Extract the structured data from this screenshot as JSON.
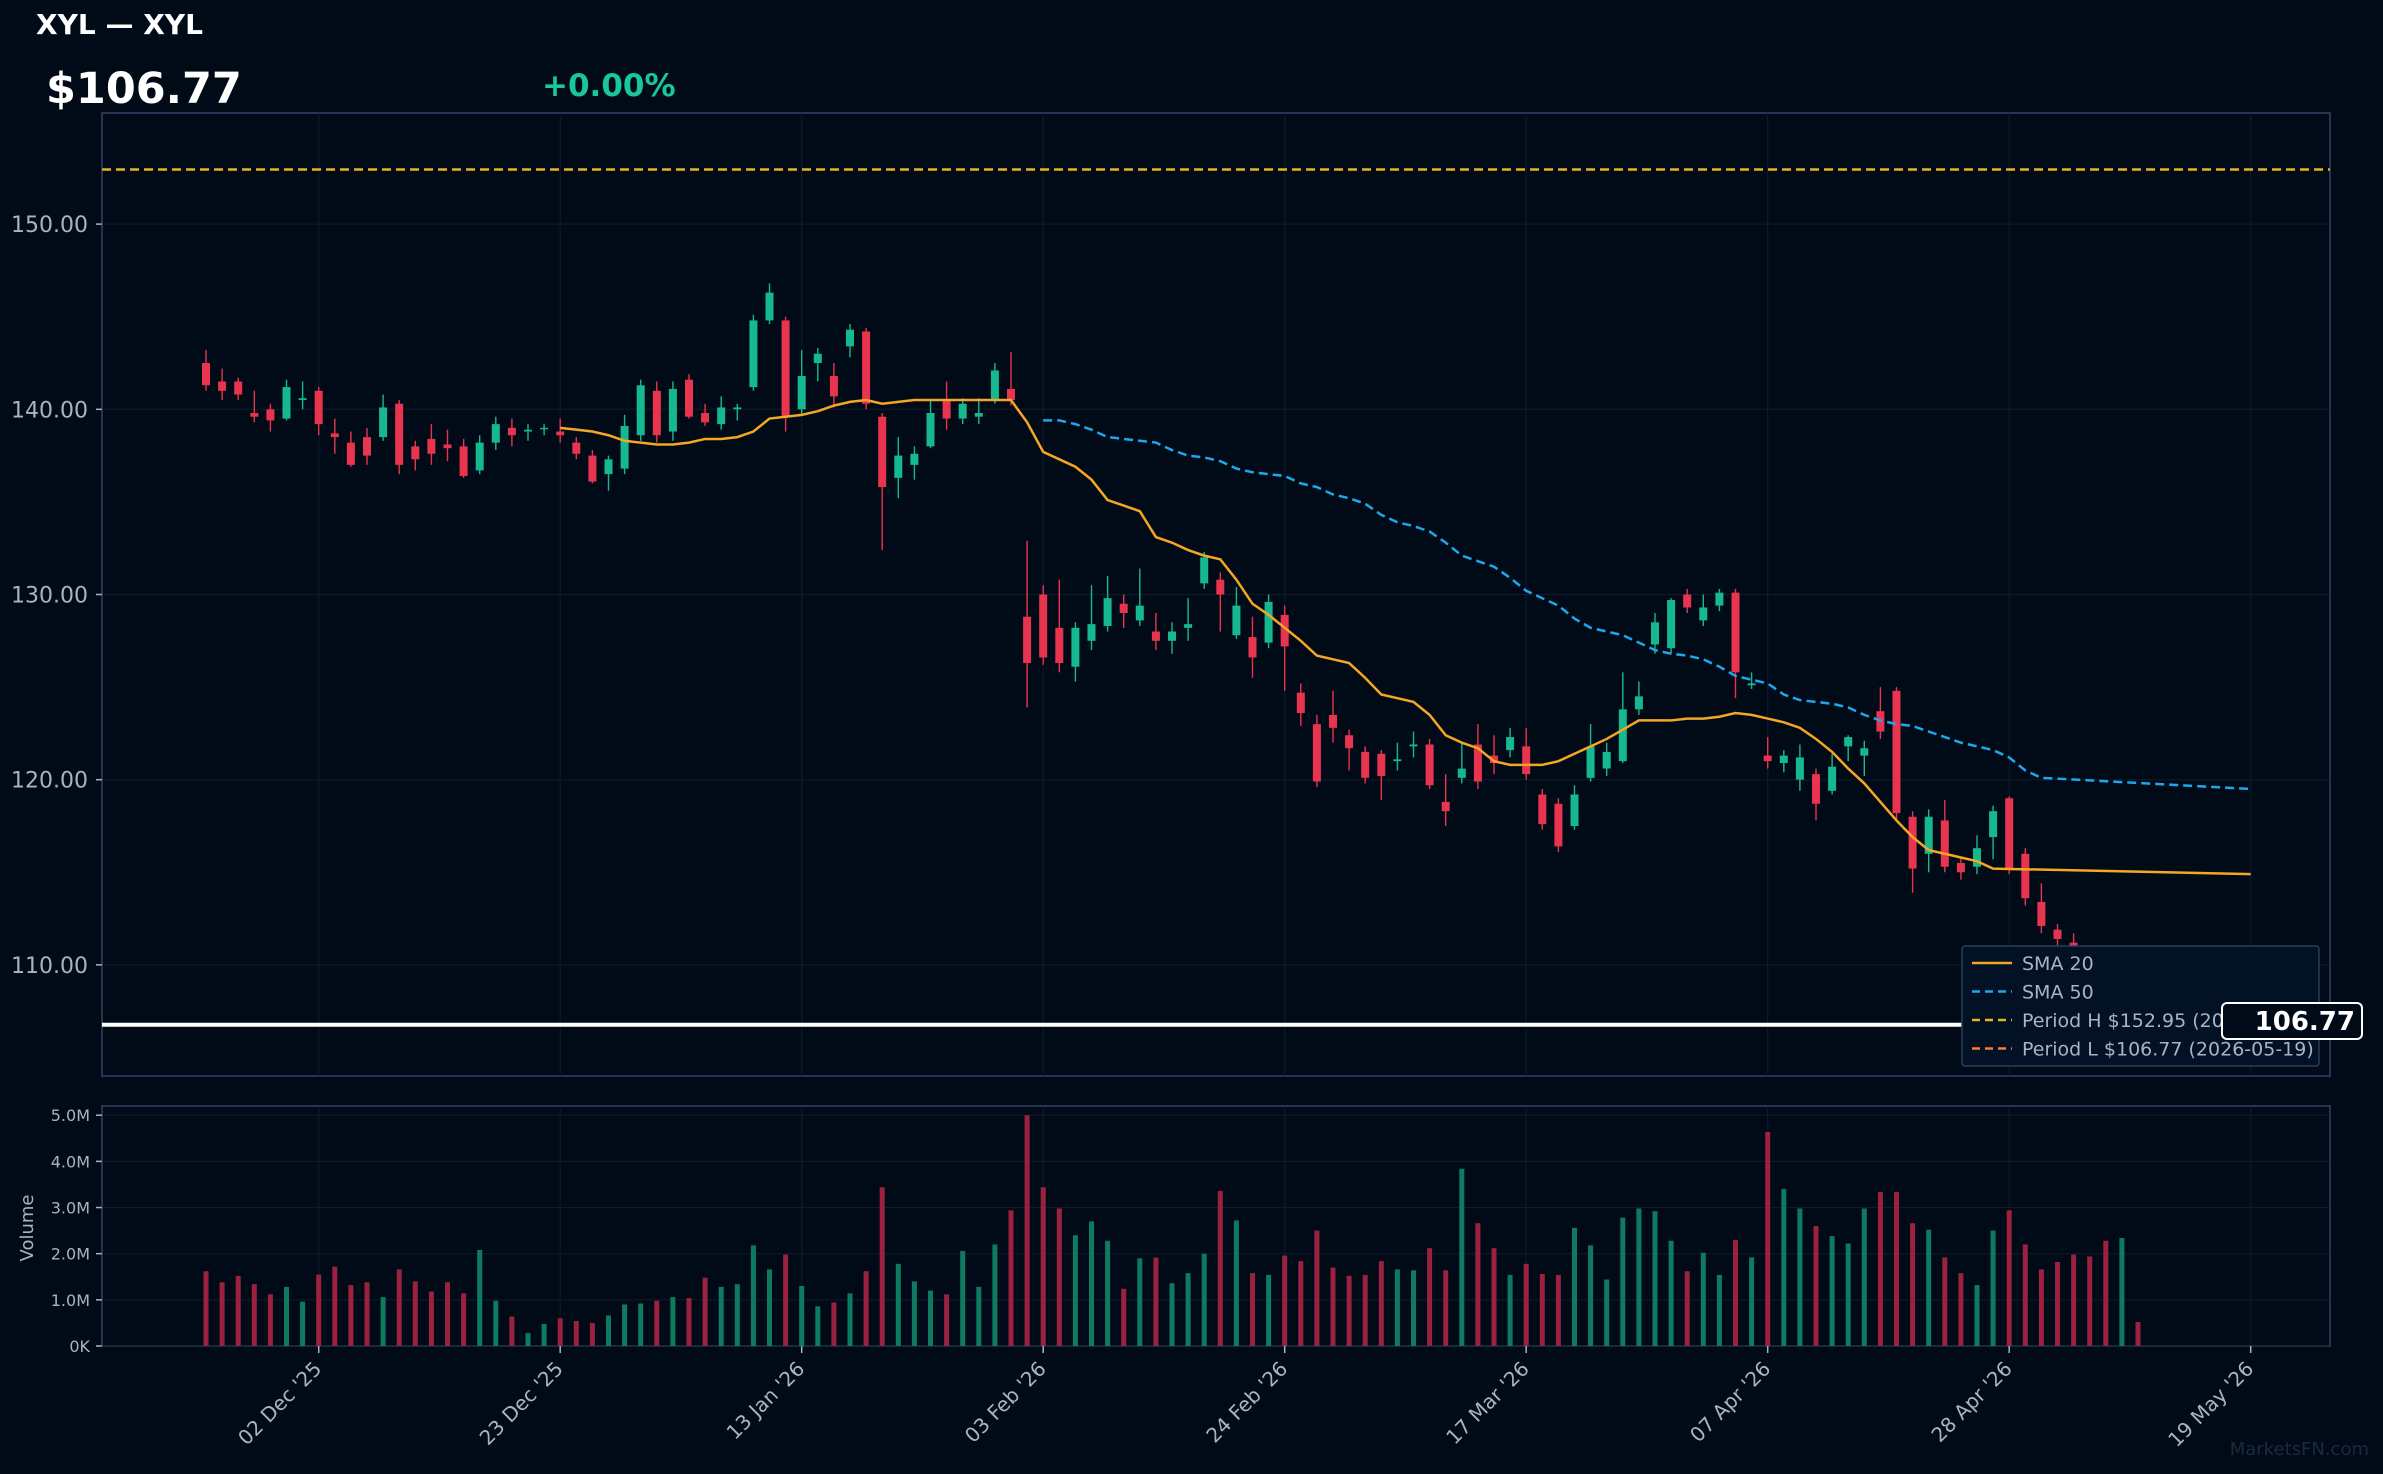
{
  "header": {
    "title": "XYL — XYL",
    "price": "$106.77",
    "change": "+0.00%"
  },
  "price_tag": "106.77",
  "watermark": "MarketsFN.com",
  "colors": {
    "background": "#010b18",
    "up": "#16b98f",
    "down": "#e8344e",
    "sma20": "#f5a623",
    "sma50": "#1ea7ec",
    "period_high": "#e6b422",
    "period_low": "#ff7b35",
    "last_price": "#ffffff",
    "axis_text": "#a8b3c4"
  },
  "chart_data": {
    "type": "candlestick",
    "price_axis": {
      "ylim": [
        104,
        156
      ],
      "ticks": [
        110,
        120,
        130,
        140,
        150
      ],
      "tick_labels": [
        "110.00",
        "120.00",
        "130.00",
        "140.00",
        "150.00"
      ]
    },
    "volume_axis": {
      "ylabel": "Volume",
      "ylim": [
        0,
        5.2
      ],
      "unit": "M",
      "ticks": [
        0,
        1,
        2,
        3,
        4,
        5
      ],
      "tick_labels": [
        "0K",
        "1.0M",
        "2.0M",
        "3.0M",
        "4.0M",
        "5.0M"
      ]
    },
    "x_ticks": [
      {
        "label": "02 Dec '25",
        "i": 7
      },
      {
        "label": "23 Dec '25",
        "i": 22
      },
      {
        "label": "13 Jan '26",
        "i": 37
      },
      {
        "label": "03 Feb '26",
        "i": 52
      },
      {
        "label": "24 Feb '26",
        "i": 67
      },
      {
        "label": "17 Mar '26",
        "i": 82
      },
      {
        "label": "07 Apr '26",
        "i": 97
      },
      {
        "label": "28 Apr '26",
        "i": 112
      },
      {
        "label": "19 May '26",
        "i": 127
      }
    ],
    "legend": {
      "position": "bottom-right",
      "entries": [
        {
          "label": "SMA 20",
          "style": "solid",
          "color": "#f5a623"
        },
        {
          "label": "SMA 50",
          "style": "dashed",
          "color": "#1ea7ec"
        },
        {
          "label": "Period H $152.95 (2025-10-29)",
          "style": "dashed",
          "color": "#e6b422"
        },
        {
          "label": "Period L $106.77 (2026-05-19)",
          "style": "dashed",
          "color": "#ff7b35"
        }
      ]
    },
    "reference_lines": {
      "period_high": 152.95,
      "period_low": 106.77,
      "last": 106.77
    },
    "candles": [
      [
        142.5,
        141.3,
        143.2,
        141.0,
        1.62
      ],
      [
        141.5,
        141.0,
        142.2,
        140.5,
        1.38
      ],
      [
        141.5,
        140.8,
        141.7,
        140.5,
        1.52
      ],
      [
        139.8,
        139.6,
        141.0,
        139.3,
        1.34
      ],
      [
        140.0,
        139.4,
        140.3,
        138.8,
        1.12
      ],
      [
        139.5,
        141.2,
        141.6,
        139.4,
        1.28
      ],
      [
        140.5,
        140.6,
        141.5,
        140.0,
        0.96
      ],
      [
        141.0,
        139.2,
        141.2,
        138.6,
        1.55
      ],
      [
        138.7,
        138.5,
        139.5,
        137.6,
        1.72
      ],
      [
        138.2,
        137.0,
        138.8,
        136.9,
        1.32
      ],
      [
        138.5,
        137.5,
        139.0,
        137.0,
        1.38
      ],
      [
        138.5,
        140.1,
        140.8,
        138.3,
        1.06
      ],
      [
        140.3,
        137.0,
        140.5,
        136.5,
        1.66
      ],
      [
        138.0,
        137.3,
        138.3,
        136.7,
        1.4
      ],
      [
        138.4,
        137.6,
        139.2,
        137.0,
        1.18
      ],
      [
        138.1,
        137.9,
        138.9,
        137.2,
        1.38
      ],
      [
        138.0,
        136.4,
        138.4,
        136.3,
        1.14
      ],
      [
        136.7,
        138.2,
        138.6,
        136.5,
        2.08
      ],
      [
        138.2,
        139.2,
        139.6,
        137.8,
        0.98
      ],
      [
        139.0,
        138.6,
        139.5,
        138.0,
        0.64
      ],
      [
        138.8,
        138.9,
        139.2,
        138.3,
        0.28
      ],
      [
        139.0,
        139.0,
        139.2,
        138.6,
        0.48
      ],
      [
        138.8,
        138.6,
        139.5,
        138.2,
        0.6
      ],
      [
        138.2,
        137.6,
        138.5,
        137.3,
        0.54
      ],
      [
        137.5,
        136.1,
        137.8,
        136.0,
        0.5
      ],
      [
        136.5,
        137.3,
        137.5,
        135.6,
        0.66
      ],
      [
        136.8,
        139.1,
        139.7,
        136.5,
        0.9
      ],
      [
        138.6,
        141.3,
        141.6,
        138.3,
        0.92
      ],
      [
        141.0,
        138.6,
        141.5,
        138.2,
        0.98
      ],
      [
        138.8,
        141.1,
        141.5,
        138.3,
        1.06
      ],
      [
        141.6,
        139.6,
        141.9,
        139.5,
        1.04
      ],
      [
        139.8,
        139.3,
        140.3,
        139.1,
        1.48
      ],
      [
        139.2,
        140.1,
        140.7,
        138.9,
        1.28
      ],
      [
        140.0,
        140.1,
        140.3,
        139.4,
        1.34
      ],
      [
        141.2,
        144.8,
        145.1,
        141.0,
        2.18
      ],
      [
        144.8,
        146.3,
        146.8,
        144.6,
        1.66
      ],
      [
        144.8,
        139.6,
        145.0,
        138.8,
        1.98
      ],
      [
        140.0,
        141.8,
        143.2,
        139.7,
        1.3
      ],
      [
        142.5,
        143.0,
        143.3,
        141.5,
        0.86
      ],
      [
        141.8,
        140.7,
        142.5,
        140.1,
        0.94
      ],
      [
        143.4,
        144.3,
        144.6,
        142.8,
        1.14
      ],
      [
        144.2,
        140.3,
        144.4,
        140.0,
        1.62
      ],
      [
        139.6,
        135.8,
        139.8,
        132.4,
        3.44
      ],
      [
        136.3,
        137.5,
        138.5,
        135.2,
        1.78
      ],
      [
        137.0,
        137.6,
        138.0,
        136.2,
        1.4
      ],
      [
        138.0,
        139.8,
        140.5,
        137.9,
        1.2
      ],
      [
        140.5,
        139.5,
        141.5,
        138.9,
        1.12
      ],
      [
        139.5,
        140.3,
        140.6,
        139.2,
        2.06
      ],
      [
        139.6,
        139.8,
        140.6,
        139.2,
        1.28
      ],
      [
        140.5,
        142.1,
        142.5,
        140.3,
        2.2
      ],
      [
        141.1,
        140.5,
        143.1,
        140.2,
        2.94
      ],
      [
        128.8,
        126.3,
        132.9,
        123.9,
        5.0
      ],
      [
        130.0,
        126.6,
        130.5,
        126.2,
        3.44
      ],
      [
        128.2,
        126.3,
        130.8,
        125.8,
        2.98
      ],
      [
        126.1,
        128.2,
        128.5,
        125.3,
        2.4
      ],
      [
        127.5,
        128.4,
        130.5,
        127.0,
        2.7
      ],
      [
        128.3,
        129.8,
        131.0,
        128.0,
        2.28
      ],
      [
        129.5,
        129.0,
        130.0,
        128.2,
        1.24
      ],
      [
        128.6,
        129.4,
        131.4,
        128.3,
        1.9
      ],
      [
        128.0,
        127.5,
        129.0,
        127.0,
        1.92
      ],
      [
        127.5,
        128.0,
        128.5,
        126.8,
        1.36
      ],
      [
        128.2,
        128.4,
        129.8,
        127.5,
        1.58
      ],
      [
        130.6,
        132.0,
        132.3,
        130.3,
        2.0
      ],
      [
        130.8,
        130.0,
        131.2,
        128.0,
        3.36
      ],
      [
        127.8,
        129.4,
        130.4,
        127.6,
        2.72
      ],
      [
        127.7,
        126.6,
        128.8,
        125.5,
        1.58
      ],
      [
        127.4,
        129.6,
        130.0,
        127.1,
        1.54
      ],
      [
        128.9,
        127.2,
        129.4,
        124.8,
        1.96
      ],
      [
        124.7,
        123.6,
        125.2,
        122.9,
        1.84
      ],
      [
        123.0,
        119.9,
        123.5,
        119.6,
        2.5
      ],
      [
        123.5,
        122.8,
        124.8,
        122.0,
        1.7
      ],
      [
        122.4,
        121.7,
        122.7,
        120.5,
        1.52
      ],
      [
        121.5,
        120.1,
        121.8,
        119.8,
        1.54
      ],
      [
        121.4,
        120.2,
        121.6,
        118.9,
        1.84
      ],
      [
        121.0,
        121.1,
        122.0,
        120.5,
        1.66
      ],
      [
        121.8,
        121.9,
        122.6,
        121.2,
        1.64
      ],
      [
        121.9,
        119.7,
        122.2,
        119.5,
        2.12
      ],
      [
        118.8,
        118.3,
        120.3,
        117.5,
        1.64
      ],
      [
        120.1,
        120.6,
        122.0,
        119.8,
        3.84
      ],
      [
        121.9,
        119.9,
        123.0,
        119.5,
        2.66
      ],
      [
        121.3,
        120.9,
        122.4,
        120.3,
        2.12
      ],
      [
        121.6,
        122.3,
        122.8,
        121.2,
        1.54
      ],
      [
        121.8,
        120.3,
        122.8,
        120.0,
        1.78
      ],
      [
        119.2,
        117.6,
        119.5,
        117.3,
        1.56
      ],
      [
        118.7,
        116.4,
        119.0,
        116.1,
        1.54
      ],
      [
        117.5,
        119.2,
        119.7,
        117.3,
        2.56
      ],
      [
        120.1,
        121.8,
        123.0,
        119.9,
        2.18
      ],
      [
        120.6,
        121.5,
        122.0,
        120.2,
        1.44
      ],
      [
        121.0,
        123.8,
        125.8,
        120.9,
        2.78
      ],
      [
        123.8,
        124.5,
        125.3,
        123.5,
        2.98
      ],
      [
        127.3,
        128.5,
        129.0,
        126.8,
        2.92
      ],
      [
        127.1,
        129.7,
        129.8,
        126.8,
        2.28
      ],
      [
        130.0,
        129.3,
        130.3,
        129.0,
        1.62
      ],
      [
        128.6,
        129.3,
        130.0,
        128.3,
        2.02
      ],
      [
        129.4,
        130.1,
        130.3,
        129.1,
        1.54
      ],
      [
        130.1,
        125.8,
        130.3,
        124.4,
        2.3
      ],
      [
        125.1,
        125.2,
        125.8,
        124.9,
        1.92
      ],
      [
        121.3,
        121.0,
        122.3,
        120.6,
        4.64
      ],
      [
        120.9,
        121.3,
        121.6,
        120.4,
        3.4
      ],
      [
        120.0,
        121.2,
        121.9,
        119.4,
        2.98
      ],
      [
        120.3,
        118.7,
        120.6,
        117.8,
        2.6
      ],
      [
        119.4,
        120.7,
        121.4,
        119.2,
        2.38
      ],
      [
        121.8,
        122.3,
        122.4,
        121.0,
        2.22
      ],
      [
        121.3,
        121.7,
        122.1,
        120.2,
        2.98
      ],
      [
        123.7,
        122.6,
        125.0,
        122.2,
        3.34
      ],
      [
        124.8,
        118.2,
        125.0,
        117.8,
        3.34
      ],
      [
        118.0,
        115.2,
        118.3,
        113.9,
        2.66
      ],
      [
        116.0,
        118.0,
        118.4,
        115.0,
        2.52
      ],
      [
        117.8,
        115.3,
        118.9,
        115.0,
        1.92
      ],
      [
        115.5,
        115.0,
        115.8,
        114.6,
        1.58
      ],
      [
        115.3,
        116.3,
        117.0,
        114.9,
        1.32
      ],
      [
        116.9,
        118.3,
        118.6,
        115.7,
        2.5
      ],
      [
        119.0,
        115.2,
        119.1,
        114.9,
        2.94
      ],
      [
        116.0,
        113.6,
        116.3,
        113.2,
        2.2
      ],
      [
        113.4,
        112.1,
        114.4,
        111.7,
        1.66
      ],
      [
        111.9,
        111.4,
        112.2,
        110.8,
        1.82
      ],
      [
        111.2,
        110.3,
        111.7,
        109.0,
        1.98
      ],
      [
        109.8,
        109.3,
        110.3,
        108.9,
        1.94
      ],
      [
        108.9,
        108.3,
        109.9,
        107.8,
        2.28
      ],
      [
        107.9,
        108.6,
        109.2,
        107.6,
        2.34
      ],
      [
        108.4,
        106.8,
        108.7,
        106.6,
        0.52
      ]
    ],
    "sma20": [
      [
        22,
        139.0
      ],
      [
        23,
        138.9
      ],
      [
        24,
        138.8
      ],
      [
        25,
        138.6
      ],
      [
        26,
        138.3
      ],
      [
        27,
        138.2
      ],
      [
        28,
        138.1
      ],
      [
        29,
        138.1
      ],
      [
        30,
        138.2
      ],
      [
        31,
        138.4
      ],
      [
        32,
        138.4
      ],
      [
        33,
        138.5
      ],
      [
        34,
        138.8
      ],
      [
        35,
        139.5
      ],
      [
        36,
        139.6
      ],
      [
        37,
        139.7
      ],
      [
        38,
        139.9
      ],
      [
        39,
        140.2
      ],
      [
        40,
        140.4
      ],
      [
        41,
        140.5
      ],
      [
        42,
        140.3
      ],
      [
        43,
        140.4
      ],
      [
        44,
        140.5
      ],
      [
        45,
        140.5
      ],
      [
        46,
        140.5
      ],
      [
        47,
        140.5
      ],
      [
        48,
        140.5
      ],
      [
        49,
        140.5
      ],
      [
        50,
        140.5
      ],
      [
        51,
        139.3
      ],
      [
        52,
        137.7
      ],
      [
        53,
        137.3
      ],
      [
        54,
        136.9
      ],
      [
        55,
        136.2
      ],
      [
        56,
        135.1
      ],
      [
        57,
        134.8
      ],
      [
        58,
        134.5
      ],
      [
        59,
        133.1
      ],
      [
        60,
        132.8
      ],
      [
        61,
        132.4
      ],
      [
        62,
        132.1
      ],
      [
        63,
        131.9
      ],
      [
        64,
        130.8
      ],
      [
        65,
        129.5
      ],
      [
        66,
        128.9
      ],
      [
        67,
        128.2
      ],
      [
        68,
        127.5
      ],
      [
        69,
        126.7
      ],
      [
        70,
        126.5
      ],
      [
        71,
        126.3
      ],
      [
        72,
        125.5
      ],
      [
        73,
        124.6
      ],
      [
        74,
        124.4
      ],
      [
        75,
        124.2
      ],
      [
        76,
        123.5
      ],
      [
        77,
        122.4
      ],
      [
        78,
        122.0
      ],
      [
        79,
        121.7
      ],
      [
        80,
        121.0
      ],
      [
        81,
        120.8
      ],
      [
        82,
        120.8
      ],
      [
        83,
        120.8
      ],
      [
        84,
        121.0
      ],
      [
        85,
        121.4
      ],
      [
        86,
        121.8
      ],
      [
        87,
        122.2
      ],
      [
        88,
        122.7
      ],
      [
        89,
        123.2
      ],
      [
        90,
        123.2
      ],
      [
        91,
        123.2
      ],
      [
        92,
        123.3
      ],
      [
        93,
        123.3
      ],
      [
        94,
        123.4
      ],
      [
        95,
        123.6
      ],
      [
        96,
        123.5
      ],
      [
        97,
        123.3
      ],
      [
        98,
        123.1
      ],
      [
        99,
        122.8
      ],
      [
        100,
        122.2
      ],
      [
        101,
        121.5
      ],
      [
        102,
        120.6
      ],
      [
        103,
        119.8
      ],
      [
        104,
        118.8
      ],
      [
        105,
        117.8
      ],
      [
        106,
        116.9
      ],
      [
        107,
        116.2
      ],
      [
        108,
        116.0
      ],
      [
        109,
        115.8
      ],
      [
        110,
        115.6
      ],
      [
        111,
        115.2
      ],
      [
        127,
        114.9
      ]
    ],
    "sma50": [
      [
        52,
        139.4
      ],
      [
        53,
        139.4
      ],
      [
        54,
        139.2
      ],
      [
        55,
        138.9
      ],
      [
        56,
        138.5
      ],
      [
        57,
        138.4
      ],
      [
        58,
        138.3
      ],
      [
        59,
        138.2
      ],
      [
        60,
        137.8
      ],
      [
        61,
        137.5
      ],
      [
        62,
        137.4
      ],
      [
        63,
        137.2
      ],
      [
        64,
        136.8
      ],
      [
        65,
        136.6
      ],
      [
        66,
        136.5
      ],
      [
        67,
        136.4
      ],
      [
        68,
        136.0
      ],
      [
        69,
        135.8
      ],
      [
        70,
        135.4
      ],
      [
        71,
        135.2
      ],
      [
        72,
        134.9
      ],
      [
        73,
        134.3
      ],
      [
        74,
        133.9
      ],
      [
        75,
        133.7
      ],
      [
        76,
        133.4
      ],
      [
        77,
        132.8
      ],
      [
        78,
        132.1
      ],
      [
        79,
        131.8
      ],
      [
        80,
        131.5
      ],
      [
        81,
        130.9
      ],
      [
        82,
        130.2
      ],
      [
        83,
        129.8
      ],
      [
        84,
        129.4
      ],
      [
        85,
        128.7
      ],
      [
        86,
        128.2
      ],
      [
        87,
        128.0
      ],
      [
        88,
        127.8
      ],
      [
        89,
        127.4
      ],
      [
        90,
        127.0
      ],
      [
        91,
        126.8
      ],
      [
        92,
        126.7
      ],
      [
        93,
        126.5
      ],
      [
        94,
        126.1
      ],
      [
        95,
        125.6
      ],
      [
        96,
        125.4
      ],
      [
        97,
        125.2
      ],
      [
        98,
        124.6
      ],
      [
        99,
        124.3
      ],
      [
        100,
        124.2
      ],
      [
        101,
        124.1
      ],
      [
        102,
        123.9
      ],
      [
        103,
        123.5
      ],
      [
        104,
        123.2
      ],
      [
        105,
        123.0
      ],
      [
        106,
        122.9
      ],
      [
        107,
        122.6
      ],
      [
        108,
        122.3
      ],
      [
        109,
        122.0
      ],
      [
        110,
        121.8
      ],
      [
        111,
        121.6
      ],
      [
        112,
        121.2
      ],
      [
        113,
        120.5
      ],
      [
        114,
        120.1
      ],
      [
        127,
        119.5
      ]
    ]
  }
}
